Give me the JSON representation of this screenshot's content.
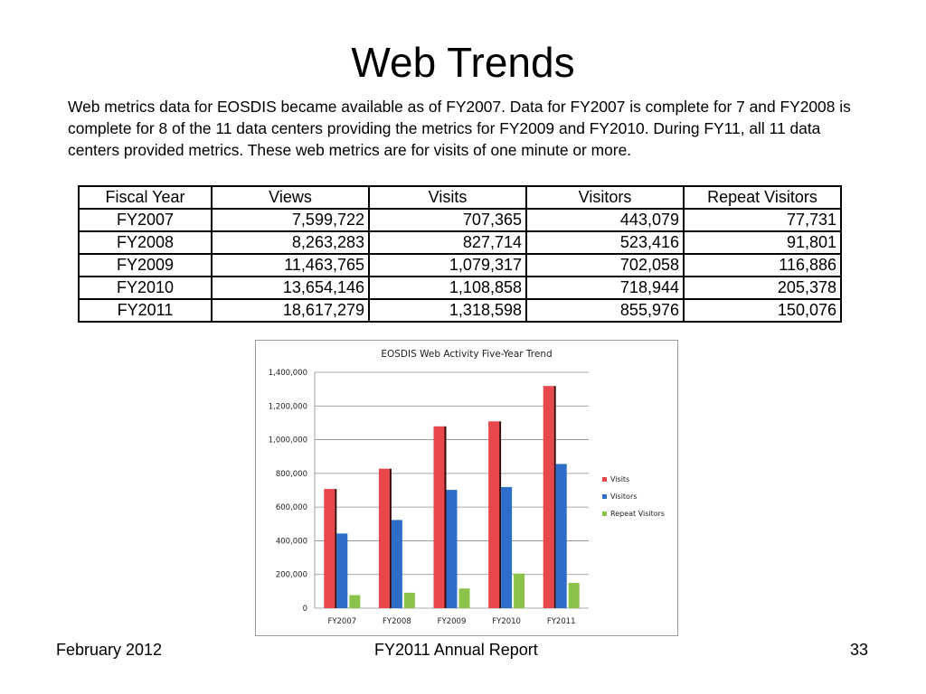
{
  "slide": {
    "title": "Web Trends",
    "intro": "Web metrics data for EOSDIS became available as of FY2007. Data for FY2007 is complete for 7 and FY2008 is complete for 8 of the 11 data centers providing the metrics for FY2009 and FY2010. During FY11, all 11 data centers provided metrics. These web metrics are for visits of one minute or more."
  },
  "table": {
    "headers": [
      "Fiscal Year",
      "Views",
      "Visits",
      "Visitors",
      "Repeat Visitors"
    ],
    "rows": [
      [
        "FY2007",
        "7,599,722",
        "707,365",
        "443,079",
        "77,731"
      ],
      [
        "FY2008",
        "8,263,283",
        "827,714",
        "523,416",
        "91,801"
      ],
      [
        "FY2009",
        "11,463,765",
        "1,079,317",
        "702,058",
        "116,886"
      ],
      [
        "FY2010",
        "13,654,146",
        "1,108,858",
        "718,944",
        "205,378"
      ],
      [
        "FY2011",
        "18,617,279",
        "1,318,598",
        "855,976",
        "150,076"
      ]
    ]
  },
  "chart_data": {
    "type": "bar",
    "title": "EOSDIS Web Activity Five-Year Trend",
    "xlabel": "",
    "ylabel": "",
    "categories": [
      "FY2007",
      "FY2008",
      "FY2009",
      "FY2010",
      "FY2011"
    ],
    "series": [
      {
        "name": "Visits",
        "color": "#e8474c",
        "values": [
          707365,
          827714,
          1079317,
          1108858,
          1318598
        ]
      },
      {
        "name": "Visitors",
        "color": "#2e6dc9",
        "values": [
          443079,
          523416,
          702058,
          718944,
          855976
        ]
      },
      {
        "name": "Repeat Visitors",
        "color": "#8bc34a",
        "values": [
          77731,
          91801,
          116886,
          205378,
          150076
        ]
      }
    ],
    "ylim": [
      0,
      1400000
    ],
    "yticks": [
      0,
      200000,
      400000,
      600000,
      800000,
      1000000,
      1200000,
      1400000
    ],
    "ytick_labels": [
      "0",
      "200,000",
      "400,000",
      "600,000",
      "800,000",
      "1,000,000",
      "1,200,000",
      "1,400,000"
    ],
    "grid": true,
    "legend_position": "right"
  },
  "footer": {
    "date": "February 2012",
    "report": "FY2011 Annual Report",
    "page": "33"
  }
}
